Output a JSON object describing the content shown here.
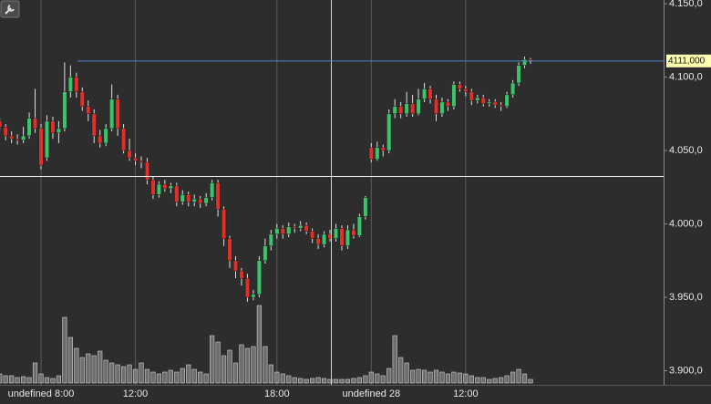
{
  "chart_data": {
    "type": "candlestick",
    "categories": [
      null,
      null,
      null,
      null,
      null,
      null,
      null,
      "undefined 8:00",
      null,
      null,
      null,
      null,
      null,
      null,
      null,
      null,
      null,
      null,
      null,
      null,
      null,
      null,
      null,
      "12:00",
      null,
      null,
      null,
      null,
      null,
      null,
      null,
      null,
      null,
      null,
      null,
      null,
      null,
      null,
      null,
      null,
      null,
      null,
      null,
      null,
      null,
      null,
      null,
      "18:00",
      null,
      null,
      null,
      null,
      null,
      null,
      null,
      null,
      null,
      null,
      null,
      null,
      null,
      null,
      null,
      "undefined 28",
      null,
      null,
      null,
      null,
      null,
      null,
      null,
      null,
      null,
      null,
      null,
      null,
      null,
      null,
      null,
      "12:00",
      null,
      null,
      null,
      null,
      null,
      null,
      null,
      null,
      null,
      null,
      null
    ],
    "open": [
      4070,
      4066,
      4060,
      4058,
      4057,
      4060,
      4072,
      4065,
      4045,
      4070,
      4062,
      4065,
      4090,
      4100,
      4090,
      4080,
      4075,
      4060,
      4055,
      4065,
      4085,
      4065,
      4050,
      4045,
      4043,
      4042,
      4030,
      4020,
      4027,
      4024,
      4026,
      4015,
      4020,
      4015,
      4017,
      4014,
      4018,
      4028,
      4010,
      3990,
      3975,
      3968,
      3963,
      3950,
      3952,
      3975,
      3985,
      3993,
      3997,
      3993,
      3998,
      3997,
      3999,
      3995,
      3990,
      3986,
      3993,
      3990,
      3997,
      3985,
      3996,
      3992,
      4005,
      4052,
      4044,
      4052,
      4050,
      4075,
      4080,
      4075,
      4082,
      4075,
      4085,
      4092,
      4085,
      4075,
      4083,
      4080,
      4095,
      4092,
      4090,
      4084,
      4086,
      4082,
      4083,
      4081,
      4080,
      4088,
      4096,
      4108,
      4112
    ],
    "high": [
      4072,
      4068,
      4063,
      4061,
      4066,
      4076,
      4092,
      4068,
      4074,
      4073,
      4070,
      4110,
      4108,
      4103,
      4093,
      4084,
      4078,
      4064,
      4068,
      4095,
      4088,
      4068,
      4058,
      4048,
      4046,
      4045,
      4032,
      4029,
      4030,
      4028,
      4028,
      4023,
      4022,
      4020,
      4019,
      4021,
      4030,
      4030,
      4012,
      3992,
      3978,
      3970,
      3966,
      3955,
      3978,
      3990,
      3996,
      4000,
      3999,
      4001,
      4000,
      4002,
      4001,
      3997,
      3993,
      3995,
      3996,
      4000,
      3999,
      3999,
      4000,
      4007,
      4019,
      4055,
      4056,
      4054,
      4078,
      4085,
      4083,
      4090,
      4088,
      4092,
      4096,
      4094,
      4088,
      4086,
      4085,
      4097,
      4097,
      4094,
      4092,
      4088,
      4088,
      4085,
      4085,
      4083,
      4090,
      4098,
      4110,
      4114,
      4113
    ],
    "low": [
      4064,
      4057,
      4055,
      4054,
      4055,
      4058,
      4062,
      4037,
      4043,
      4058,
      4055,
      4063,
      4086,
      4086,
      4077,
      4070,
      4055,
      4052,
      4053,
      4063,
      4060,
      4048,
      4043,
      4040,
      4038,
      4027,
      4017,
      4018,
      4022,
      4021,
      4012,
      4013,
      4012,
      4012,
      4011,
      4012,
      4016,
      4005,
      3985,
      3970,
      3963,
      3958,
      3947,
      3948,
      3950,
      3973,
      3982,
      3990,
      3990,
      3991,
      3994,
      3995,
      3993,
      3987,
      3983,
      3984,
      3988,
      3988,
      3982,
      3983,
      3990,
      3991,
      4003,
      4042,
      4043,
      4046,
      4048,
      4072,
      4072,
      4073,
      4073,
      4074,
      4083,
      4082,
      4070,
      4073,
      4077,
      4078,
      4090,
      4087,
      4081,
      4082,
      4080,
      4080,
      4079,
      4077,
      4079,
      4086,
      4094,
      4106,
      4109
    ],
    "close": [
      4066,
      4060,
      4058,
      4057,
      4060,
      4072,
      4065,
      4040,
      4070,
      4062,
      4065,
      4090,
      4100,
      4090,
      4080,
      4075,
      4060,
      4055,
      4065,
      4085,
      4065,
      4050,
      4045,
      4043,
      4042,
      4030,
      4020,
      4027,
      4024,
      4026,
      4015,
      4020,
      4015,
      4017,
      4014,
      4018,
      4028,
      4010,
      3990,
      3975,
      3968,
      3963,
      3950,
      3952,
      3975,
      3985,
      3993,
      3997,
      3993,
      3998,
      3997,
      3999,
      3995,
      3990,
      3986,
      3993,
      3990,
      3997,
      3985,
      3996,
      3992,
      4005,
      4018,
      4044,
      4052,
      4050,
      4075,
      4080,
      4075,
      4082,
      4075,
      4085,
      4092,
      4085,
      4075,
      4083,
      4080,
      4095,
      4092,
      4090,
      4084,
      4086,
      4082,
      4083,
      4081,
      4080,
      4088,
      4096,
      4108,
      4112,
      4111
    ],
    "volume": [
      10,
      8,
      8,
      6,
      7,
      6,
      22,
      10,
      6,
      5,
      8,
      72,
      50,
      38,
      28,
      32,
      30,
      35,
      25,
      22,
      20,
      18,
      20,
      15,
      22,
      15,
      12,
      10,
      12,
      14,
      12,
      16,
      20,
      15,
      12,
      10,
      52,
      45,
      30,
      36,
      22,
      42,
      38,
      40,
      85,
      40,
      20,
      12,
      10,
      8,
      6,
      5,
      4,
      5,
      6,
      5,
      4,
      4,
      4,
      4,
      5,
      6,
      8,
      12,
      10,
      8,
      16,
      52,
      28,
      22,
      14,
      15,
      14,
      12,
      14,
      12,
      10,
      12,
      11,
      10,
      8,
      6,
      6,
      4,
      5,
      6,
      8,
      12,
      15,
      10,
      4
    ],
    "up_color": "#3cc46a",
    "down_color": "#e0302a",
    "volume_color": "#9a9a9a",
    "ylim": [
      3890.4,
      4152.5
    ],
    "yticks": [
      {
        "value": 3900,
        "label": "3.900,0"
      },
      {
        "value": 3950,
        "label": "3.950,0"
      },
      {
        "value": 4000,
        "label": "4.000,0"
      },
      {
        "value": 4050,
        "label": "4.050,0"
      },
      {
        "value": 4100,
        "label": "4.100,0"
      },
      {
        "value": 4150,
        "label": "4.150,0"
      }
    ],
    "price_line": {
      "value": 4111,
      "label": "4111,000",
      "color": "#4a86c8"
    }
  }
}
